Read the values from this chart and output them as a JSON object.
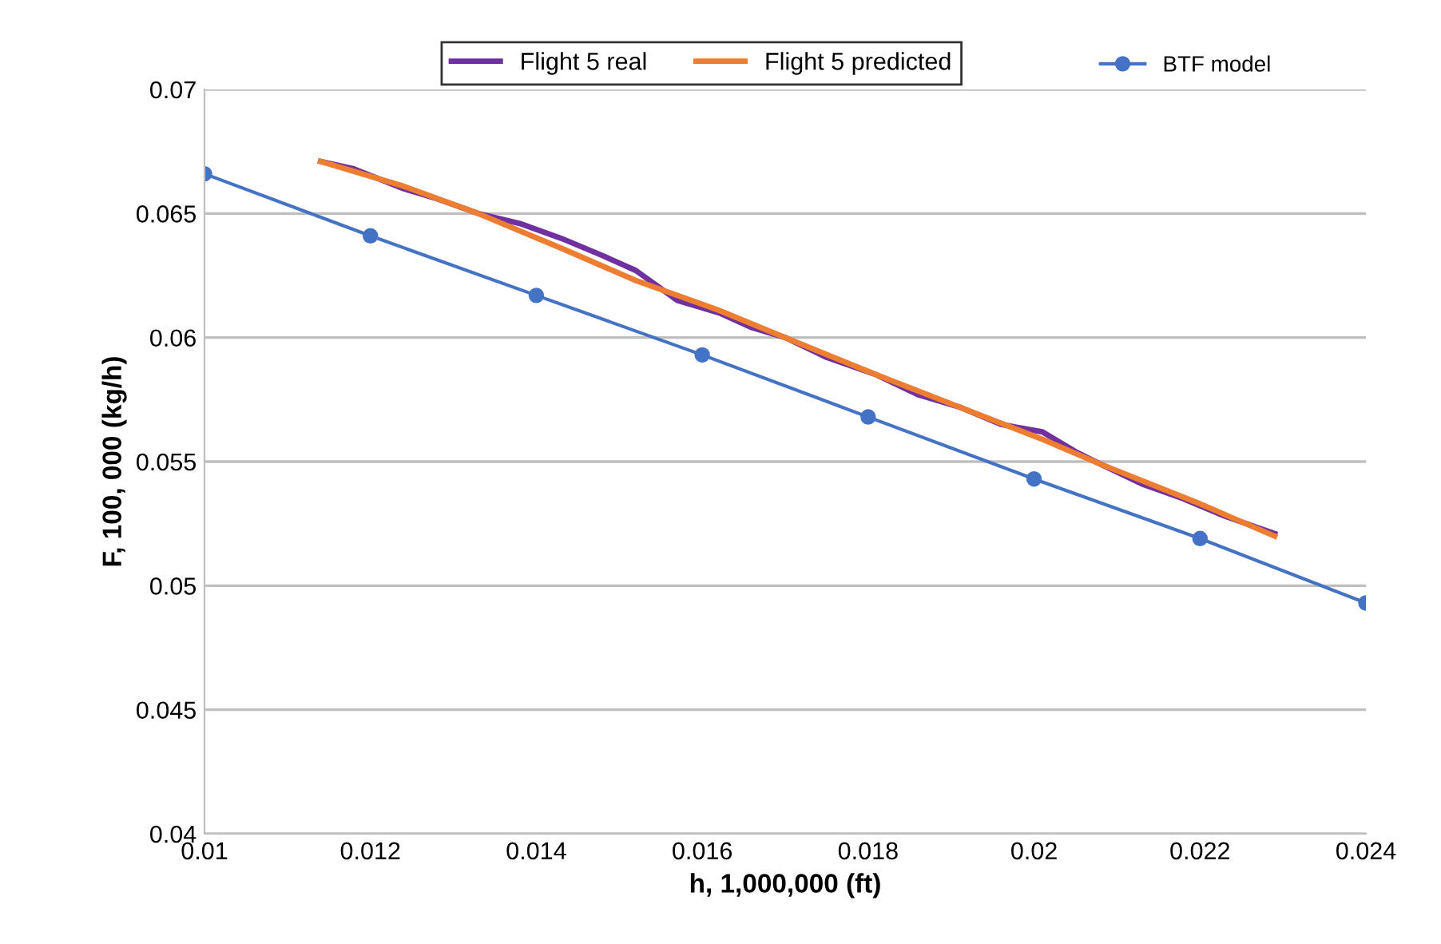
{
  "chart_data": {
    "type": "line",
    "xlabel": "h, 1,000,000 (ft)",
    "ylabel": "F, 100, 000 (kg/h)",
    "xlim": [
      0.01,
      0.024
    ],
    "xticks": [
      0.01,
      0.012,
      0.014,
      0.016,
      0.018,
      0.02,
      0.022,
      0.024
    ],
    "ylim": [
      0.04,
      0.07
    ],
    "yticks": [
      0.04,
      0.045,
      0.05,
      0.055,
      0.06,
      0.065,
      0.07
    ],
    "grid": "y",
    "legend": "top",
    "series": [
      {
        "name": "Flight 5 real",
        "color": "#7030a0",
        "marker": "none",
        "x": [
          0.0114,
          0.0118,
          0.0124,
          0.0128,
          0.0133,
          0.0138,
          0.0143,
          0.0148,
          0.0152,
          0.0157,
          0.0162,
          0.0166,
          0.017,
          0.0175,
          0.0181,
          0.0186,
          0.0191,
          0.0196,
          0.0201,
          0.0205,
          0.0208,
          0.0213,
          0.0218,
          0.0223,
          0.0229
        ],
        "values": [
          0.0671,
          0.0668,
          0.066,
          0.0656,
          0.065,
          0.0646,
          0.064,
          0.0633,
          0.0627,
          0.0615,
          0.061,
          0.0604,
          0.06,
          0.0592,
          0.0585,
          0.0577,
          0.0572,
          0.0565,
          0.0562,
          0.0554,
          0.0549,
          0.0541,
          0.0535,
          0.0528,
          0.0521
        ]
      },
      {
        "name": "Flight 5 predicted",
        "color": "#ed7d31",
        "marker": "none",
        "x": [
          0.0114,
          0.0124,
          0.0133,
          0.0143,
          0.0152,
          0.0162,
          0.017,
          0.0181,
          0.0191,
          0.0201,
          0.0208,
          0.022,
          0.0229
        ],
        "values": [
          0.0671,
          0.0661,
          0.065,
          0.0636,
          0.0623,
          0.0611,
          0.06,
          0.0585,
          0.0572,
          0.0559,
          0.0549,
          0.0533,
          0.052
        ]
      },
      {
        "name": "BTF model",
        "color": "#4472c4",
        "marker": "circle",
        "x": [
          0.01,
          0.012,
          0.014,
          0.016,
          0.018,
          0.02,
          0.022,
          0.024
        ],
        "values": [
          0.0666,
          0.0641,
          0.0617,
          0.0593,
          0.0568,
          0.0543,
          0.0519,
          0.0493
        ]
      }
    ]
  }
}
